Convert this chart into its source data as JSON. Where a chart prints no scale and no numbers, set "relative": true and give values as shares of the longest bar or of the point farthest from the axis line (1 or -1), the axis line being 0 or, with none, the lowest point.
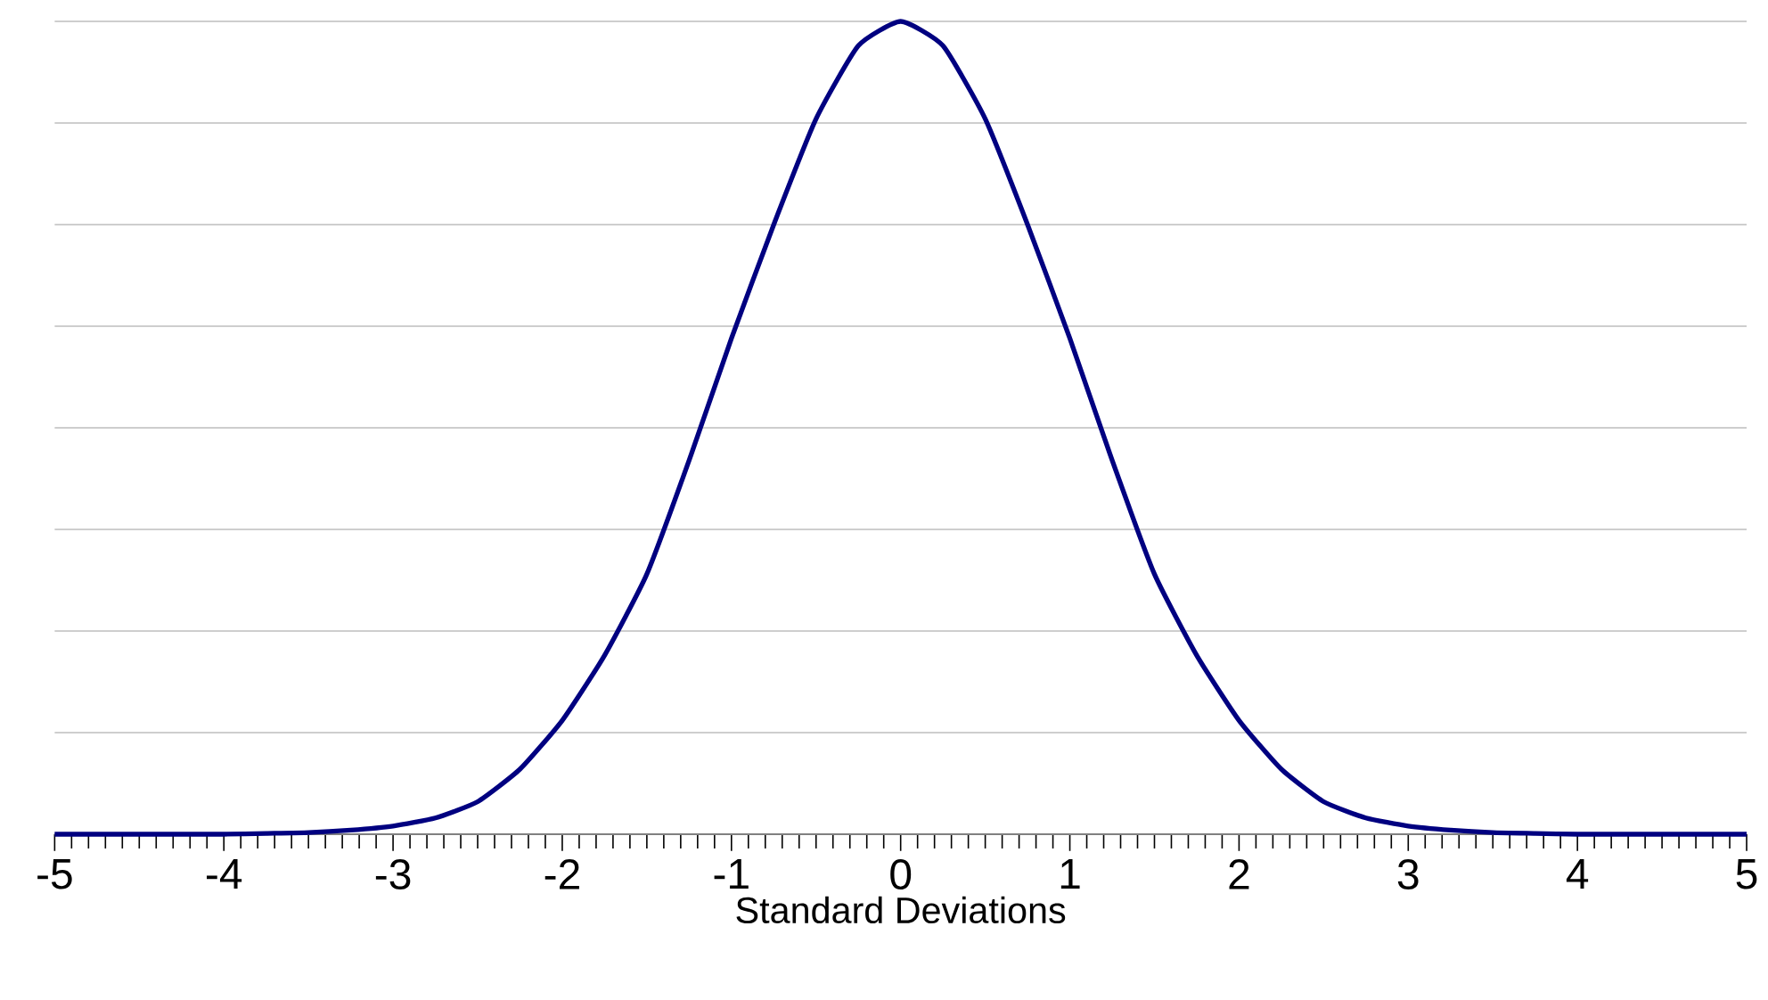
{
  "chart_data": {
    "type": "line",
    "xlabel": "Standard Deviations",
    "relative": true,
    "grid": "y",
    "color": "#000080",
    "xlim": [
      -5,
      5
    ],
    "xticks": [
      -5,
      -4,
      -3,
      -2,
      -1,
      0,
      1,
      2,
      3,
      4,
      5
    ],
    "x": [
      -5,
      -4.75,
      -4.5,
      -4.25,
      -4,
      -3.75,
      -3.5,
      -3.25,
      -3,
      -2.75,
      -2.5,
      -2.25,
      -2,
      -1.75,
      -1.5,
      -1.25,
      -1,
      -0.75,
      -0.5,
      -0.25,
      0,
      0.25,
      0.5,
      0.75,
      1,
      1.25,
      1.5,
      1.75,
      2,
      2.25,
      2.5,
      2.75,
      3,
      3.25,
      3.5,
      3.75,
      4,
      4.25,
      4.5,
      4.75,
      5
    ],
    "values": [
      0,
      0,
      0,
      0,
      0,
      0.001,
      0.002,
      0.005,
      0.01,
      0.02,
      0.04,
      0.08,
      0.14,
      0.22,
      0.32,
      0.46,
      0.61,
      0.75,
      0.88,
      0.97,
      1,
      0.97,
      0.88,
      0.75,
      0.61,
      0.46,
      0.32,
      0.22,
      0.14,
      0.08,
      0.04,
      0.02,
      0.01,
      0.005,
      0.002,
      0.001,
      0,
      0,
      0,
      0,
      0
    ]
  }
}
